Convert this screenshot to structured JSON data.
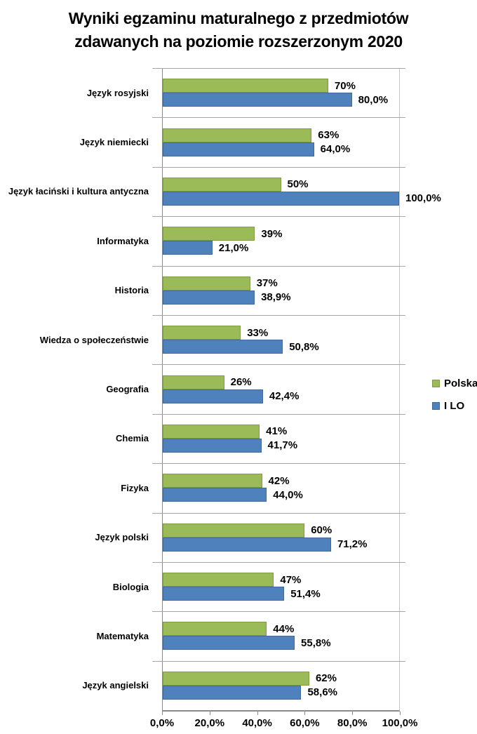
{
  "header": {
    "title_line1": "Wyniki egzaminu maturalnego z przedmiotów",
    "title_line2": "zdawanych na poziomie rozszerzonym 2020"
  },
  "legend": {
    "items": [
      {
        "label": "Polska",
        "color": "#9BBB59"
      },
      {
        "label": "I LO",
        "color": "#4F81BD"
      }
    ]
  },
  "chart_data": {
    "type": "bar",
    "orientation": "horizontal",
    "title": "Wyniki egzaminu maturalnego z przedmiotów zdawanych na poziomie rozszerzonym 2020",
    "categories": [
      "Język rosyjski",
      "Język niemiecki",
      "Język łaciński i kultura antyczna",
      "Informatyka",
      "Historia",
      "Wiedza o społeczeństwie",
      "Geografia",
      "Chemia",
      "Fizyka",
      "Język polski",
      "Biologia",
      "Matematyka",
      "Język angielski"
    ],
    "series": [
      {
        "name": "Polska",
        "color": "#9BBB59",
        "values": [
          70,
          63,
          50,
          39,
          37,
          33,
          26,
          41,
          42,
          60,
          47,
          44,
          62
        ],
        "labels": [
          "70%",
          "63%",
          "50%",
          "39%",
          "37%",
          "33%",
          "26%",
          "41%",
          "42%",
          "60%",
          "47%",
          "44%",
          "62%"
        ]
      },
      {
        "name": "I LO",
        "color": "#4F81BD",
        "values": [
          80.0,
          64.0,
          100.0,
          21.0,
          38.9,
          50.8,
          42.4,
          41.7,
          44.0,
          71.2,
          51.4,
          55.8,
          58.6
        ],
        "labels": [
          "80,0%",
          "64,0%",
          "100,0%",
          "21,0%",
          "38,9%",
          "50,8%",
          "42,4%",
          "41,7%",
          "44,0%",
          "71,2%",
          "51,4%",
          "55,8%",
          "58,6%"
        ]
      }
    ],
    "x_axis": {
      "range": [
        0,
        100
      ],
      "ticks": [
        "0,0%",
        "20,0%",
        "40,0%",
        "60,0%",
        "80,0%",
        "100,0%"
      ],
      "tick_values": [
        0,
        20,
        40,
        60,
        80,
        100
      ],
      "gridlines": false
    },
    "legend_position": "right",
    "value_labels": true
  }
}
